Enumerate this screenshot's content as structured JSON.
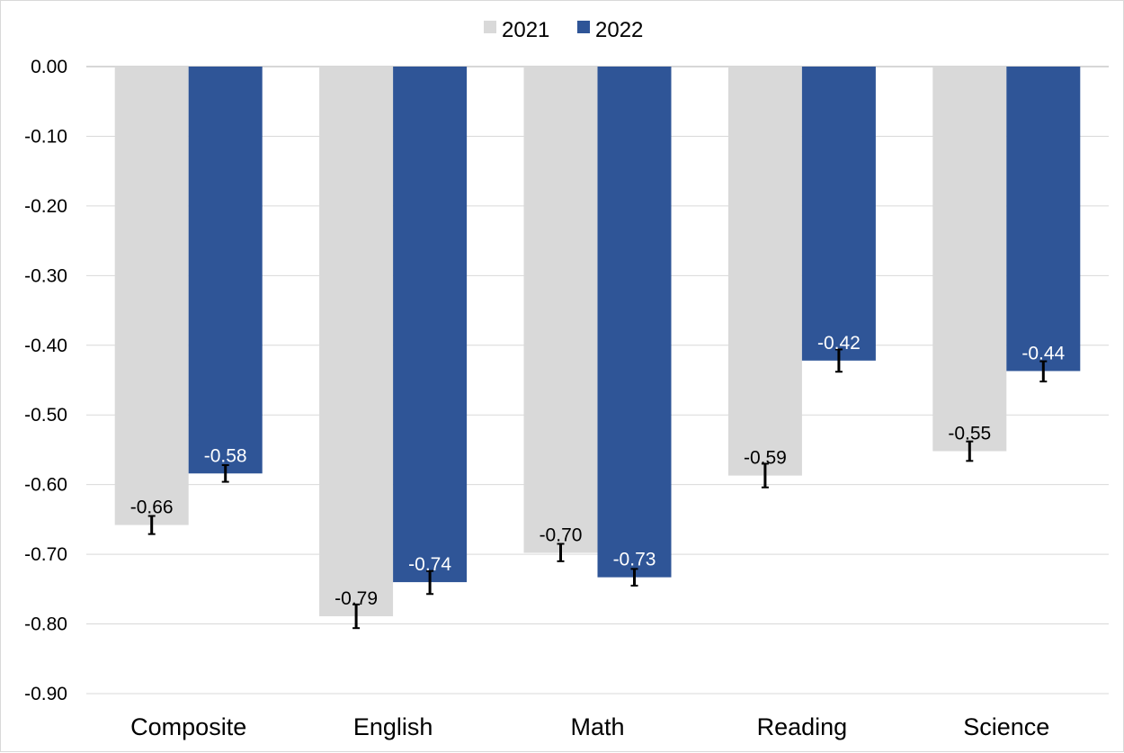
{
  "chart_data": {
    "type": "bar",
    "title": "",
    "xlabel": "",
    "ylabel": "",
    "categories": [
      "Composite",
      "English",
      "Math",
      "Reading",
      "Science"
    ],
    "series": [
      {
        "name": "2021",
        "color": "#d9d9d9",
        "label_color": "#000000",
        "values": [
          -0.658,
          -0.789,
          -0.698,
          -0.587,
          -0.552
        ],
        "labels": [
          "-0.66",
          "-0.79",
          "-0.70",
          "-0.59",
          "-0.55"
        ],
        "error_low": [
          -0.671,
          -0.806,
          -0.71,
          -0.604,
          -0.566
        ],
        "error_high": [
          -0.645,
          -0.772,
          -0.685,
          -0.57,
          -0.538
        ]
      },
      {
        "name": "2022",
        "color": "#2f5597",
        "label_color": "#ffffff",
        "values": [
          -0.584,
          -0.74,
          -0.733,
          -0.422,
          -0.437
        ],
        "labels": [
          "-0.58",
          "-0.74",
          "-0.73",
          "-0.42",
          "-0.44"
        ],
        "error_low": [
          -0.596,
          -0.757,
          -0.745,
          -0.438,
          -0.452
        ],
        "error_high": [
          -0.572,
          -0.724,
          -0.721,
          -0.406,
          -0.423
        ]
      }
    ],
    "yticks": [
      "0.00",
      "-0.10",
      "-0.20",
      "-0.30",
      "-0.40",
      "-0.50",
      "-0.60",
      "-0.70",
      "-0.80",
      "-0.90"
    ],
    "ylim": [
      -0.9,
      0
    ],
    "grid": true,
    "legend": "top-center"
  }
}
